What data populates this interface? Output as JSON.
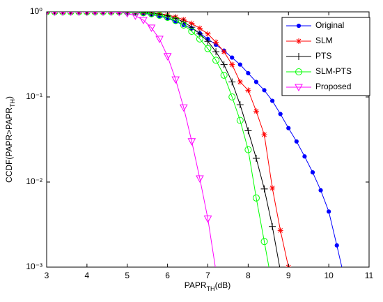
{
  "chart_data": {
    "type": "line",
    "xlabel": [
      "PAPR",
      "TH",
      "(dB)"
    ],
    "ylabel": [
      "CCDF(PAPR>PAPR",
      "TH",
      ")"
    ],
    "x": [
      3.0,
      3.2,
      3.4,
      3.6,
      3.8,
      4.0,
      4.2,
      4.4,
      4.6,
      4.8,
      5.0,
      5.2,
      5.4,
      5.6,
      5.8,
      6.0,
      6.2,
      6.4,
      6.6,
      6.8,
      7.0,
      7.2,
      7.4,
      7.6,
      7.8,
      8.0,
      8.2,
      8.4,
      8.6,
      8.8,
      9.0,
      9.2,
      9.4,
      9.6,
      9.8,
      10.0,
      10.2,
      10.4
    ],
    "series": [
      {
        "name": "Original",
        "color": "#0000ff",
        "marker": "dot",
        "values": [
          1,
          1,
          1,
          1,
          1,
          1,
          1,
          1,
          1,
          0.995,
          0.99,
          0.98,
          0.96,
          0.93,
          0.89,
          0.84,
          0.77,
          0.7,
          0.64,
          0.56,
          0.48,
          0.41,
          0.35,
          0.29,
          0.24,
          0.19,
          0.15,
          0.12,
          0.09,
          0.063,
          0.043,
          0.03,
          0.02,
          0.013,
          0.008,
          0.0045,
          0.0018,
          0.0007
        ]
      },
      {
        "name": "SLM",
        "color": "#ff0000",
        "marker": "star",
        "values": [
          1,
          1,
          1,
          1,
          1,
          1,
          1,
          1,
          1,
          1,
          0.997,
          0.993,
          0.985,
          0.97,
          0.95,
          0.92,
          0.87,
          0.81,
          0.73,
          0.64,
          0.55,
          0.44,
          0.34,
          0.24,
          0.15,
          0.12,
          0.068,
          0.036,
          0.0085,
          0.0027,
          0.001,
          null,
          null,
          null,
          null,
          null,
          null,
          null
        ]
      },
      {
        "name": "PTS",
        "color": "#000000",
        "marker": "plus",
        "values": [
          1,
          1,
          1,
          1,
          1,
          1,
          1,
          1,
          1,
          1,
          0.997,
          0.993,
          0.985,
          0.97,
          0.94,
          0.9,
          0.84,
          0.76,
          0.66,
          0.55,
          0.45,
          0.34,
          0.24,
          0.15,
          0.081,
          0.04,
          0.019,
          0.0083,
          0.003,
          0.0009,
          null,
          null,
          null,
          null,
          null,
          null,
          null,
          null
        ]
      },
      {
        "name": "SLM-PTS",
        "color": "#00ff00",
        "marker": "circle",
        "values": [
          1,
          1,
          1,
          1,
          1,
          1,
          1,
          1,
          1,
          1,
          0.995,
          0.99,
          0.975,
          0.95,
          0.91,
          0.86,
          0.79,
          0.7,
          0.59,
          0.48,
          0.37,
          0.27,
          0.18,
          0.1,
          0.053,
          0.024,
          0.0065,
          0.002,
          0.0006,
          null,
          null,
          null,
          null,
          null,
          null,
          null,
          null,
          null
        ]
      },
      {
        "name": "Proposed",
        "color": "#ff00ff",
        "marker": "triangle",
        "values": [
          1,
          1,
          1,
          1,
          1,
          1,
          1,
          1,
          1,
          0.99,
          0.96,
          0.9,
          0.8,
          0.65,
          0.48,
          0.3,
          0.16,
          0.075,
          0.03,
          0.011,
          0.0037,
          0.0009,
          null,
          null,
          null,
          null,
          null,
          null,
          null,
          null,
          null,
          null,
          null,
          null,
          null,
          null,
          null,
          null
        ]
      }
    ],
    "xlim": [
      3,
      11
    ],
    "xticks": [
      3,
      4,
      5,
      6,
      7,
      8,
      9,
      10,
      11
    ],
    "ylim": [
      0.001,
      1
    ],
    "log_y": true,
    "yticks": [
      {
        "value": 0.001,
        "label": "10⁻³"
      },
      {
        "value": 0.01,
        "label": "10⁻²"
      },
      {
        "value": 0.1,
        "label": "10⁻¹"
      },
      {
        "value": 1,
        "label": "10⁰"
      }
    ],
    "legend": "upper right"
  }
}
